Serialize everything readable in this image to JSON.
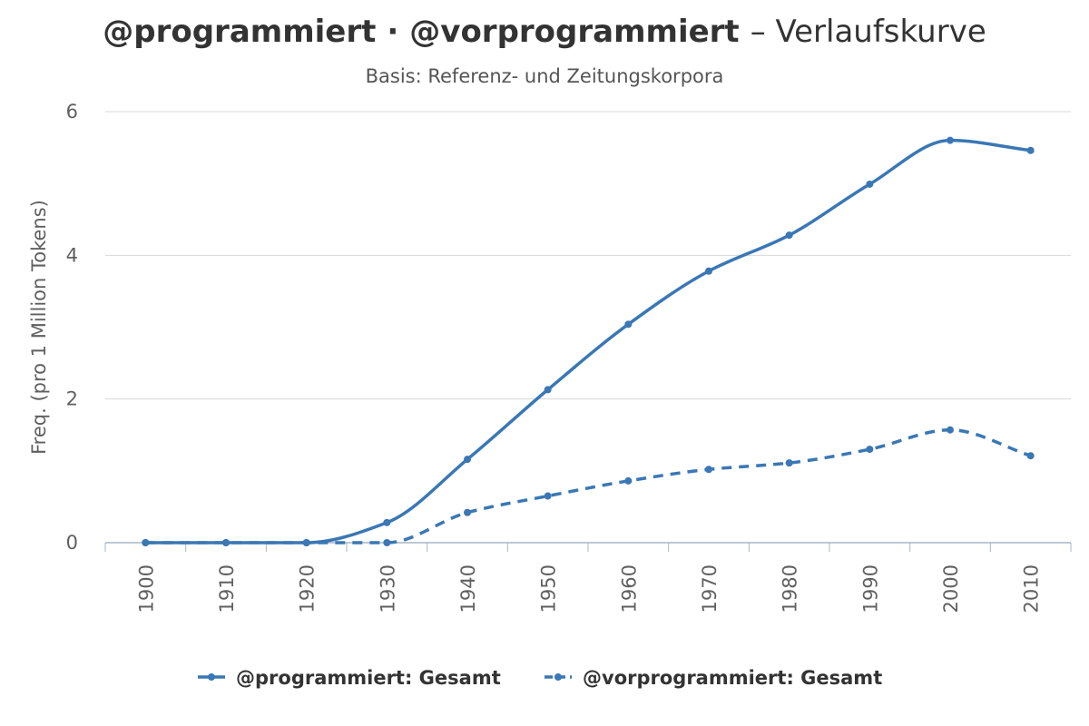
{
  "header": {
    "title_part1": "@programmiert",
    "title_separator": "·",
    "title_part2": "@vorprogrammiert",
    "title_suffix": "– Verlaufskurve",
    "subtitle": "Basis: Referenz- und Zeitungskorpora"
  },
  "chart_data": {
    "type": "line",
    "title": "@programmiert · @vorprogrammiert – Verlaufskurve",
    "subtitle": "Basis: Referenz- und Zeitungskorpora",
    "xlabel": "",
    "ylabel": "Freq. (pro 1 Million Tokens)",
    "x": [
      1900,
      1910,
      1920,
      1930,
      1940,
      1950,
      1960,
      1970,
      1980,
      1990,
      2000,
      2010
    ],
    "ylim": [
      0,
      6
    ],
    "yticks": [
      0,
      2,
      4,
      6
    ],
    "grid": true,
    "legend_position": "bottom-center",
    "series": [
      {
        "name": "@programmiert: Gesamt",
        "style": "solid",
        "color": "#3a77b5",
        "values": [
          0,
          0,
          0,
          0.28,
          1.16,
          2.13,
          3.04,
          3.78,
          4.28,
          4.99,
          5.6,
          5.46
        ]
      },
      {
        "name": "@vorprogrammiert: Gesamt",
        "style": "dashed",
        "color": "#3a77b5",
        "values": [
          0,
          0,
          0,
          0,
          0.42,
          0.65,
          0.86,
          1.02,
          1.11,
          1.3,
          1.57,
          1.21
        ]
      }
    ]
  }
}
